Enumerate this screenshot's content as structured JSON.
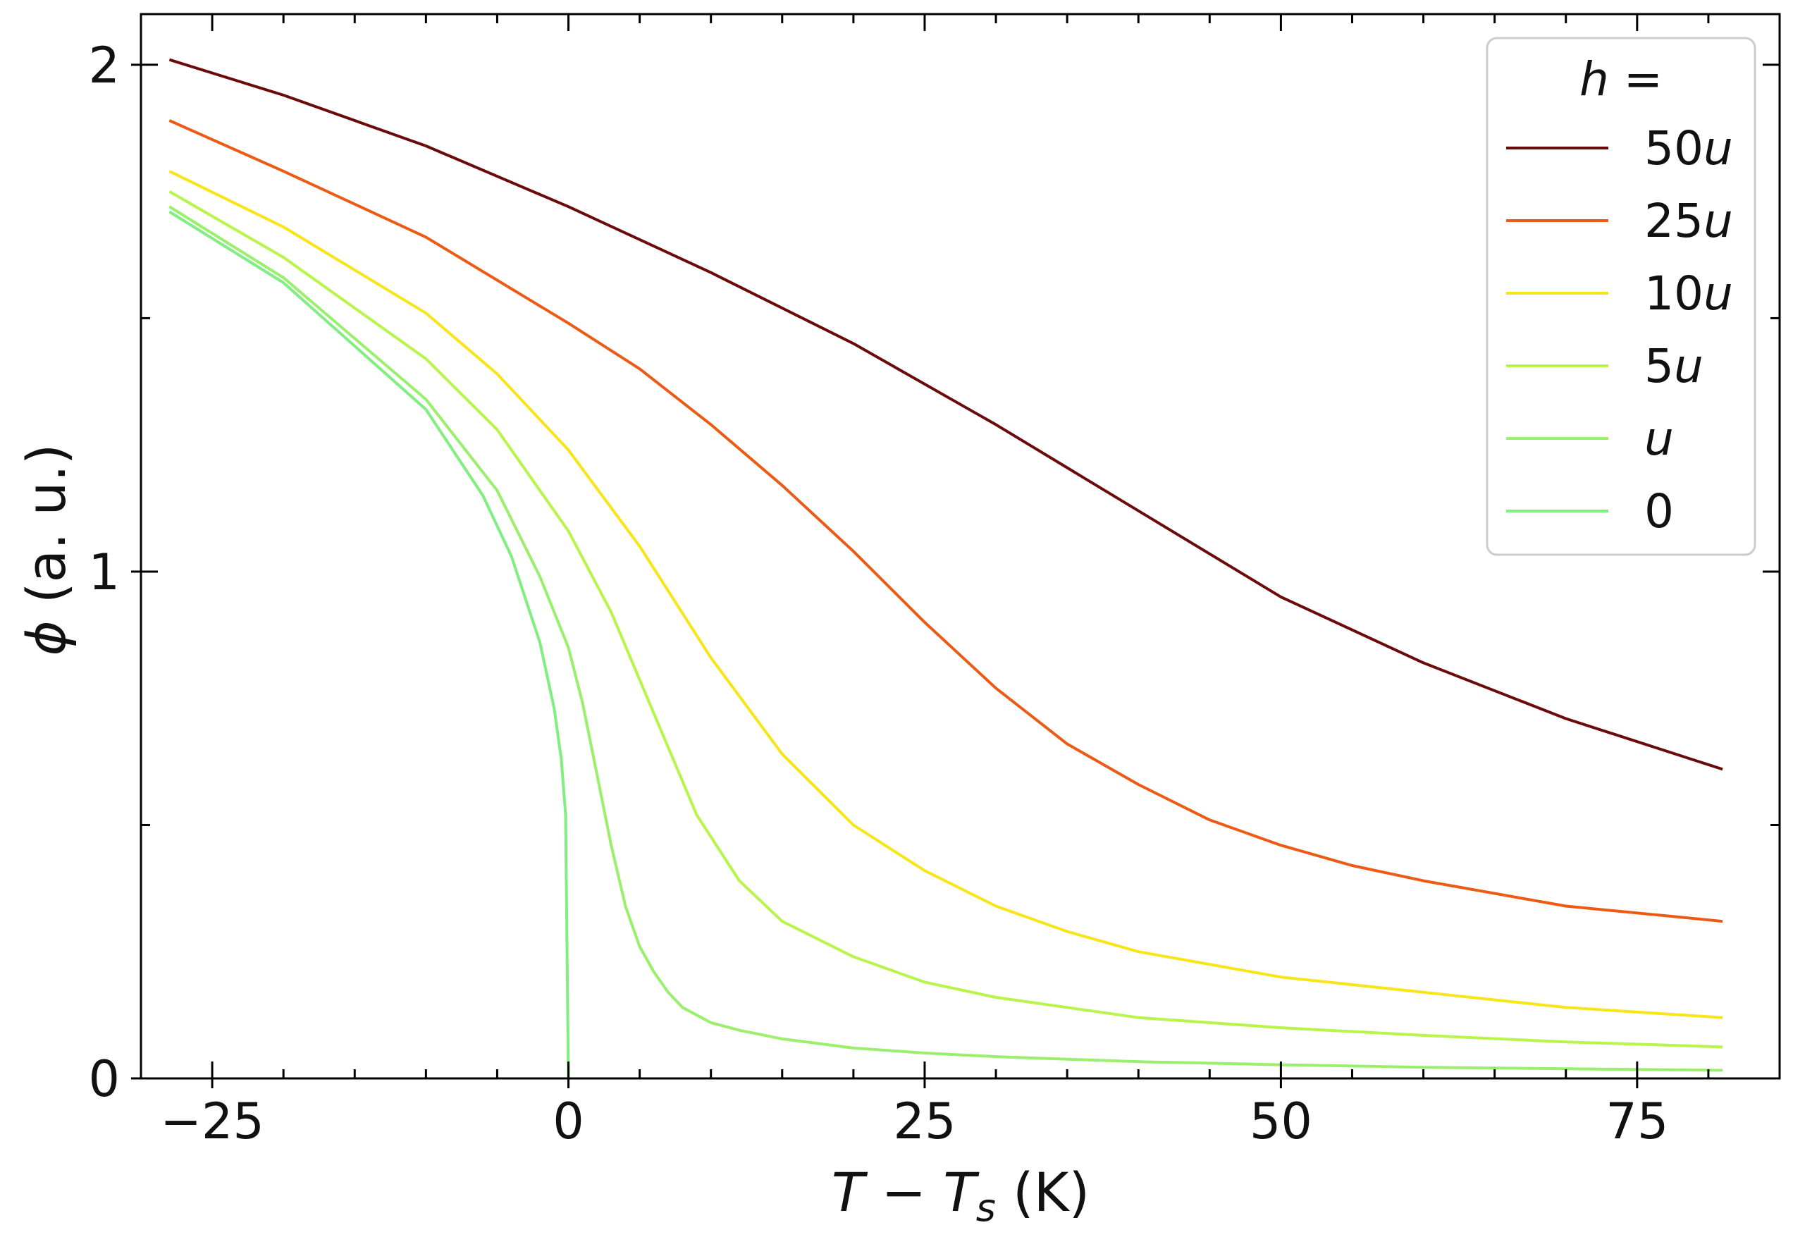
{
  "chart_data": {
    "type": "line",
    "xlabel": {
      "var": "T",
      "op": " − ",
      "sub_base": "T",
      "sub": "s",
      "unit": " (K)"
    },
    "ylabel": {
      "var": "ϕ",
      "unit": " (a. u.)"
    },
    "xlim": [
      -30,
      85
    ],
    "ylim": [
      0,
      2.1
    ],
    "xticks": [
      -25,
      0,
      25,
      50,
      75
    ],
    "xtick_labels": [
      "−25",
      "0",
      "25",
      "50",
      "75"
    ],
    "yticks": [
      0,
      1,
      2
    ],
    "ytick_labels": [
      "0",
      "1",
      "2"
    ],
    "grid": false,
    "legend": {
      "placement": "top-right",
      "title_var": "h",
      "title_suffix": " ="
    },
    "series": [
      {
        "name": "50u",
        "num": "50",
        "var": "u",
        "color": "#6b0a0a",
        "x": [
          -28,
          -20,
          -10,
          0,
          10,
          20,
          30,
          40,
          50,
          60,
          70,
          81
        ],
        "y": [
          2.01,
          1.94,
          1.84,
          1.72,
          1.59,
          1.45,
          1.29,
          1.12,
          0.95,
          0.82,
          0.71,
          0.61
        ]
      },
      {
        "name": "25u",
        "num": "25",
        "var": "u",
        "color": "#ec5a14",
        "x": [
          -28,
          -20,
          -10,
          0,
          5,
          10,
          15,
          20,
          25,
          30,
          35,
          40,
          45,
          50,
          55,
          60,
          70,
          81
        ],
        "y": [
          1.89,
          1.79,
          1.66,
          1.49,
          1.4,
          1.29,
          1.17,
          1.04,
          0.9,
          0.77,
          0.66,
          0.58,
          0.51,
          0.46,
          0.42,
          0.39,
          0.34,
          0.31
        ]
      },
      {
        "name": "10u",
        "num": "10",
        "var": "u",
        "color": "#f8e518",
        "x": [
          -28,
          -20,
          -10,
          -5,
          0,
          5,
          10,
          15,
          20,
          25,
          30,
          35,
          40,
          50,
          60,
          70,
          81
        ],
        "y": [
          1.79,
          1.68,
          1.51,
          1.39,
          1.24,
          1.05,
          0.83,
          0.64,
          0.5,
          0.41,
          0.34,
          0.29,
          0.25,
          0.2,
          0.17,
          0.14,
          0.12
        ]
      },
      {
        "name": "5u",
        "num": "5",
        "var": "u",
        "color": "#b8f54a",
        "x": [
          -28,
          -20,
          -10,
          -5,
          0,
          3,
          6,
          9,
          12,
          15,
          20,
          25,
          30,
          40,
          50,
          60,
          70,
          81
        ],
        "y": [
          1.75,
          1.62,
          1.42,
          1.28,
          1.08,
          0.92,
          0.72,
          0.52,
          0.39,
          0.31,
          0.24,
          0.19,
          0.16,
          0.12,
          0.1,
          0.085,
          0.072,
          0.062
        ]
      },
      {
        "name": "u",
        "num": "",
        "var": "u",
        "color": "#9af06c",
        "x": [
          -28,
          -20,
          -10,
          -5,
          -2,
          0,
          1,
          2,
          3,
          4,
          5,
          6,
          7,
          8,
          10,
          12,
          15,
          20,
          25,
          30,
          40,
          50,
          60,
          70,
          81
        ],
        "y": [
          1.72,
          1.58,
          1.34,
          1.16,
          0.99,
          0.85,
          0.74,
          0.6,
          0.46,
          0.34,
          0.26,
          0.21,
          0.17,
          0.14,
          0.11,
          0.095,
          0.078,
          0.06,
          0.05,
          0.043,
          0.033,
          0.027,
          0.022,
          0.019,
          0.016
        ]
      },
      {
        "name": "0",
        "num": "0",
        "var": "",
        "color": "#80ee80",
        "x": [
          -28,
          -20,
          -10,
          -6,
          -4,
          -2,
          -1,
          -0.5,
          -0.2,
          0
        ],
        "y": [
          1.71,
          1.57,
          1.32,
          1.15,
          1.03,
          0.86,
          0.73,
          0.63,
          0.52,
          0
        ]
      }
    ]
  }
}
